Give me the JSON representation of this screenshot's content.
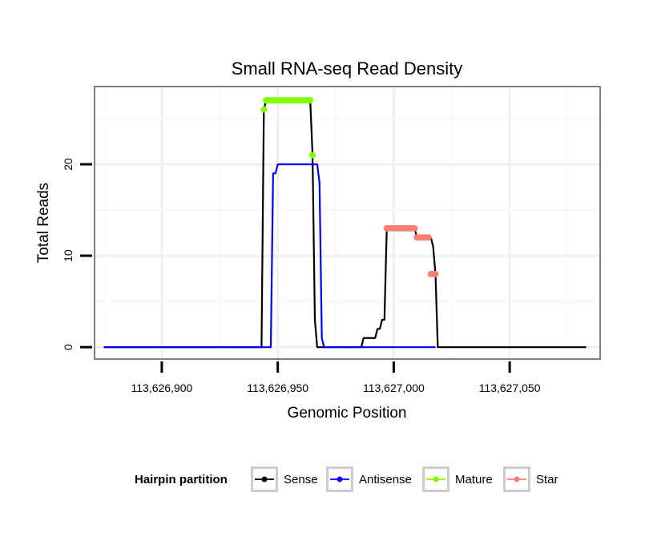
{
  "chart_data": {
    "type": "line",
    "title": "Small RNA-seq Read Density",
    "xlabel": "Genomic Position",
    "ylabel": "Total Reads",
    "xlim": [
      113626871,
      113627089
    ],
    "ylim": [
      -1.3,
      28.5
    ],
    "x_ticks": [
      113626900,
      113626950,
      113627000,
      113627050
    ],
    "x_tick_labels": [
      "113,626,900",
      "113,626,950",
      "113,627,000",
      "113,627,050"
    ],
    "y_ticks": [
      0,
      10,
      20
    ],
    "y_tick_labels": [
      "0",
      "10",
      "20"
    ],
    "grid": true,
    "legend": {
      "title": "Hairpin partition",
      "position": "bottom",
      "entries": [
        {
          "label": "Sense",
          "color": "#000000"
        },
        {
          "label": "Antisense",
          "color": "#0000ff"
        },
        {
          "label": "Mature",
          "color": "#7fff00"
        },
        {
          "label": "Star",
          "color": "#fa8072"
        }
      ]
    },
    "series": [
      {
        "name": "Sense",
        "color": "#000000",
        "x": [
          113626875,
          113626943,
          113626944,
          113626945,
          113626964,
          113626965,
          113626966,
          113626967,
          113626986,
          113626987,
          113626992,
          113626993,
          113626994,
          113626995,
          113626996,
          113626997,
          113627009,
          113627010,
          113627016,
          113627017,
          113627018,
          113627019,
          113627083
        ],
        "y": [
          0,
          0,
          26,
          27,
          27,
          21,
          3,
          0,
          0,
          1,
          1,
          2,
          2,
          3,
          3,
          13,
          13,
          12,
          12,
          11,
          8,
          0,
          0
        ]
      },
      {
        "name": "Antisense",
        "color": "#0000ff",
        "x": [
          113626875,
          113626947,
          113626948,
          113626949,
          113626950,
          113626967,
          113626968,
          113626969,
          113626970,
          113627018
        ],
        "y": [
          0,
          0,
          19,
          19,
          20,
          20,
          18,
          1,
          0,
          0
        ]
      },
      {
        "name": "Mature",
        "color": "#7fff00",
        "x": [
          113626944,
          113626945,
          113626946,
          113626947,
          113626948,
          113626949,
          113626950,
          113626951,
          113626952,
          113626953,
          113626954,
          113626955,
          113626956,
          113626957,
          113626958,
          113626959,
          113626960,
          113626961,
          113626962,
          113626963,
          113626964,
          113626965
        ],
        "y": [
          26,
          27,
          27,
          27,
          27,
          27,
          27,
          27,
          27,
          27,
          27,
          27,
          27,
          27,
          27,
          27,
          27,
          27,
          27,
          27,
          27,
          21
        ]
      },
      {
        "name": "Star",
        "color": "#fa8072",
        "x": [
          113626997,
          113626998,
          113626999,
          113627000,
          113627001,
          113627002,
          113627003,
          113627004,
          113627005,
          113627006,
          113627007,
          113627008,
          113627009,
          113627010,
          113627011,
          113627012,
          113627013,
          113627014,
          113627015,
          113627016,
          113627017,
          113627018
        ],
        "y": [
          13,
          13,
          13,
          13,
          13,
          13,
          13,
          13,
          13,
          13,
          13,
          13,
          13,
          12,
          12,
          12,
          12,
          12,
          12,
          8,
          8,
          8
        ]
      }
    ]
  }
}
